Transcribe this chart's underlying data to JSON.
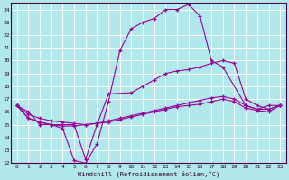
{
  "xlabel": "Windchill (Refroidissement éolien,°C)",
  "background_color": "#b0e8ec",
  "grid_color": "#ffffff",
  "line_color": "#990099",
  "xlim": [
    -0.5,
    23.5
  ],
  "ylim": [
    12,
    24.5
  ],
  "xticks": [
    0,
    1,
    2,
    3,
    4,
    5,
    6,
    7,
    8,
    9,
    10,
    11,
    12,
    13,
    14,
    15,
    16,
    17,
    18,
    19,
    20,
    21,
    22,
    23
  ],
  "yticks": [
    12,
    13,
    14,
    15,
    16,
    17,
    18,
    19,
    20,
    21,
    22,
    23,
    24
  ],
  "line1_x": [
    0,
    1,
    2,
    3,
    4,
    5,
    6,
    7,
    8,
    9,
    10,
    11,
    12,
    13,
    14,
    15,
    16,
    17,
    18,
    20,
    21,
    22,
    23
  ],
  "line1_y": [
    16.5,
    16.0,
    15.0,
    15.0,
    14.7,
    12.2,
    12.0,
    13.5,
    16.8,
    20.8,
    22.5,
    23.0,
    23.3,
    24.0,
    24.0,
    24.4,
    23.5,
    20.0,
    19.5,
    16.5,
    16.2,
    16.5,
    16.5
  ],
  "line2_x": [
    0,
    1,
    2,
    3,
    5,
    6,
    7,
    8,
    10,
    11,
    12,
    13,
    14,
    15,
    16,
    17,
    18,
    19,
    20,
    21,
    22,
    23
  ],
  "line2_y": [
    16.5,
    15.5,
    15.2,
    15.0,
    15.0,
    12.3,
    15.0,
    17.4,
    17.5,
    18.0,
    18.5,
    19.0,
    19.2,
    19.3,
    19.5,
    19.8,
    20.0,
    19.8,
    17.0,
    16.5,
    16.2,
    16.5
  ],
  "line3_x": [
    0,
    1,
    2,
    3,
    4,
    5,
    6,
    7,
    8,
    9,
    10,
    11,
    12,
    13,
    14,
    15,
    16,
    17,
    18,
    19,
    20,
    21,
    22,
    23
  ],
  "line3_y": [
    16.5,
    15.5,
    15.2,
    15.0,
    14.9,
    14.9,
    15.0,
    15.1,
    15.3,
    15.5,
    15.7,
    15.9,
    16.1,
    16.3,
    16.5,
    16.7,
    16.9,
    17.1,
    17.2,
    17.0,
    16.5,
    16.2,
    16.2,
    16.5
  ],
  "line4_x": [
    0,
    1,
    2,
    3,
    4,
    5,
    6,
    7,
    8,
    9,
    10,
    11,
    12,
    13,
    14,
    15,
    16,
    17,
    18,
    19,
    20,
    21,
    22,
    23
  ],
  "line4_y": [
    16.5,
    15.8,
    15.5,
    15.3,
    15.2,
    15.1,
    15.0,
    15.1,
    15.2,
    15.4,
    15.6,
    15.8,
    16.0,
    16.2,
    16.4,
    16.5,
    16.6,
    16.8,
    17.0,
    16.8,
    16.3,
    16.1,
    16.0,
    16.5
  ]
}
